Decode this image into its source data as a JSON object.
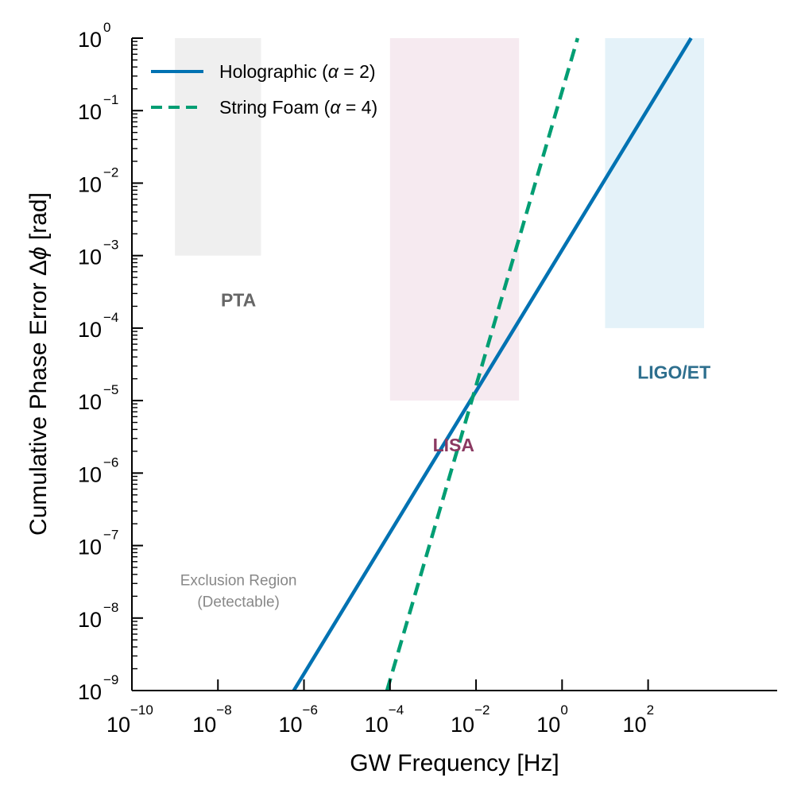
{
  "chart_data": {
    "type": "line",
    "xlabel": "GW Frequency [Hz]",
    "ylabel_prefix": "Cumulative Phase Error Δ",
    "ylabel_symbol": "ϕ",
    "ylabel_suffix": " [rad]",
    "x_scale": "log",
    "y_scale": "log",
    "xlim": [
      1e-10,
      100000
    ],
    "ylim": [
      1e-09,
      1
    ],
    "grid": false,
    "legend_position": "top-left",
    "x_ticks": [
      {
        "base": "10",
        "exp": "−10",
        "value": 1e-10
      },
      {
        "base": "10",
        "exp": "−8",
        "value": 1e-08
      },
      {
        "base": "10",
        "exp": "−6",
        "value": 1e-06
      },
      {
        "base": "10",
        "exp": "−4",
        "value": 0.0001
      },
      {
        "base": "10",
        "exp": "−2",
        "value": 0.01
      },
      {
        "base": "10",
        "exp": "0",
        "value": 1
      },
      {
        "base": "10",
        "exp": "2",
        "value": 100
      }
    ],
    "y_ticks": [
      {
        "base": "10",
        "exp": "0",
        "value": 1
      },
      {
        "base": "10",
        "exp": "−1",
        "value": 0.1
      },
      {
        "base": "10",
        "exp": "−2",
        "value": 0.01
      },
      {
        "base": "10",
        "exp": "−3",
        "value": 0.001
      },
      {
        "base": "10",
        "exp": "−4",
        "value": 0.0001
      },
      {
        "base": "10",
        "exp": "−5",
        "value": 1e-05
      },
      {
        "base": "10",
        "exp": "−6",
        "value": 1e-06
      },
      {
        "base": "10",
        "exp": "−7",
        "value": 1e-07
      },
      {
        "base": "10",
        "exp": "−8",
        "value": 1e-08
      },
      {
        "base": "10",
        "exp": "−9",
        "value": 1e-09
      }
    ],
    "bands": [
      {
        "label": "PTA",
        "x": [
          1e-09,
          1e-07
        ],
        "y": [
          0.001,
          1
        ],
        "color": "#efefef",
        "label_color": "#666666",
        "label_at": [
          3e-08,
          0.0002
        ]
      },
      {
        "label": "LISA",
        "x": [
          0.0001,
          0.1
        ],
        "y": [
          1e-05,
          1
        ],
        "color": "#f6eaf0",
        "label_color": "#8b3a62",
        "label_at": [
          0.003,
          2e-06
        ]
      },
      {
        "label": "LIGO/ET",
        "x": [
          10,
          2000
        ],
        "y": [
          0.0001,
          1
        ],
        "color": "#e4f2f9",
        "label_color": "#2e6f8e",
        "label_at": [
          400,
          2e-05
        ]
      }
    ],
    "series": [
      {
        "name_prefix": "Holographic (",
        "name_symbol": "α",
        "name_suffix": " = 2)",
        "color": "#0072b2",
        "dash": "solid",
        "x": [
          5.8e-07,
          1000
        ],
        "y": [
          1e-09,
          1
        ]
      },
      {
        "name_prefix": "String Foam (",
        "name_symbol": "α",
        "name_suffix": " = 4)",
        "color": "#009e73",
        "dash": "dashed",
        "x": [
          8.5e-05,
          2.3
        ],
        "y": [
          1e-09,
          1
        ]
      }
    ],
    "annotation": {
      "line1": "Exclusion Region",
      "line2": "(Detectable)",
      "at": [
        3e-08,
        2e-08
      ]
    }
  }
}
